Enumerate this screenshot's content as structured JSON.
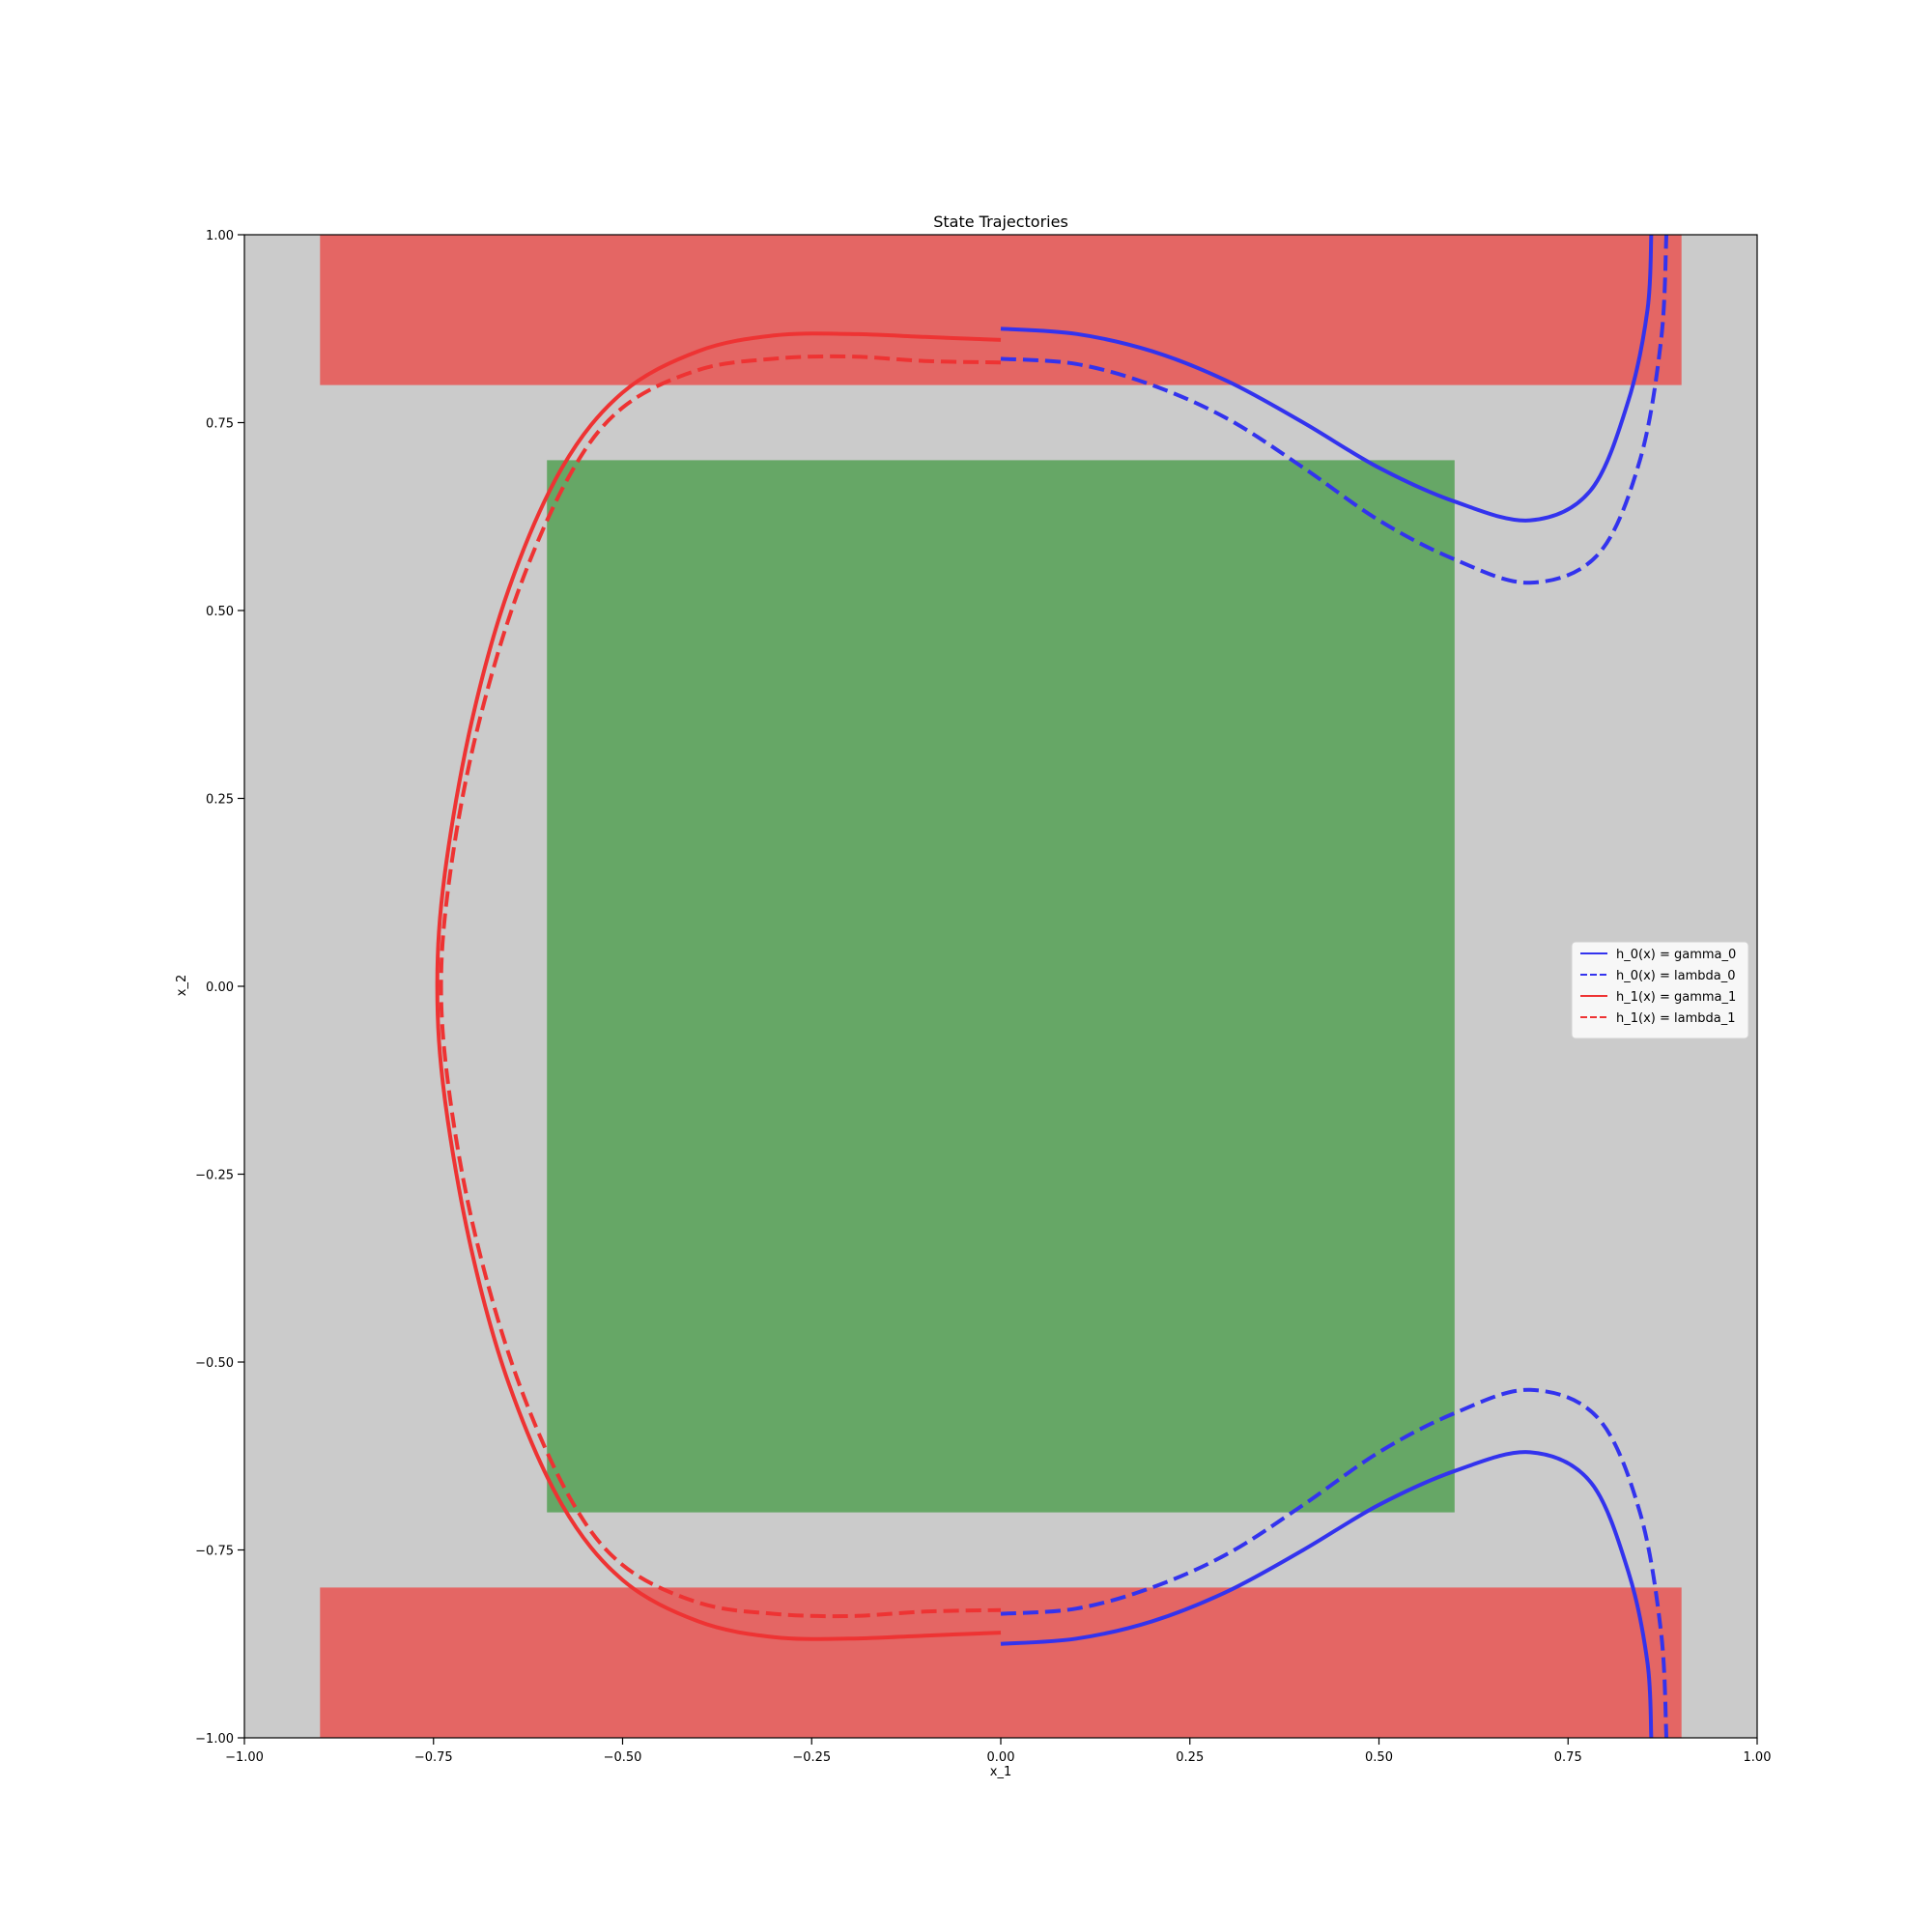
{
  "chart_data": {
    "type": "line",
    "title": "State Trajectories",
    "xlabel": "x_1",
    "ylabel": "x_2",
    "xlim": [
      -1.0,
      1.0
    ],
    "ylim": [
      -1.0,
      1.0
    ],
    "xticks": [
      "−1.00",
      "−0.75",
      "−0.50",
      "−0.25",
      "0.00",
      "0.25",
      "0.50",
      "0.75",
      "1.00"
    ],
    "yticks": [
      "1.00",
      "0.75",
      "0.50",
      "0.25",
      "0.00",
      "−0.25",
      "−0.50",
      "−0.75",
      "−1.00"
    ],
    "grid": false,
    "legend_position": "center-right",
    "background_color": "#cbcbcb",
    "regions": [
      {
        "kind": "unsafe",
        "x": [
          -0.9,
          0.9
        ],
        "y": [
          0.8,
          1.0
        ],
        "color": "#e46664"
      },
      {
        "kind": "unsafe",
        "x": [
          -0.9,
          0.9
        ],
        "y": [
          -1.0,
          -0.8
        ],
        "color": "#e46664"
      },
      {
        "kind": "initial",
        "x": [
          -0.6,
          0.6
        ],
        "y": [
          -0.7,
          0.7
        ],
        "color": "#66a766"
      }
    ],
    "series": [
      {
        "name": "h_0(x) = gamma_0",
        "color": "#3333ee",
        "dash": false,
        "points": [
          [
            0.0,
            0.875
          ],
          [
            0.1,
            0.868
          ],
          [
            0.2,
            0.845
          ],
          [
            0.3,
            0.805
          ],
          [
            0.4,
            0.75
          ],
          [
            0.5,
            0.69
          ],
          [
            0.6,
            0.645
          ],
          [
            0.7,
            0.62
          ],
          [
            0.78,
            0.66
          ],
          [
            0.83,
            0.78
          ],
          [
            0.855,
            0.9
          ],
          [
            0.86,
            1.0
          ]
        ]
      },
      {
        "name": "h_0(x) = lambda_0",
        "color": "#3333ee",
        "dash": true,
        "points": [
          [
            0.0,
            0.835
          ],
          [
            0.1,
            0.828
          ],
          [
            0.2,
            0.8
          ],
          [
            0.3,
            0.755
          ],
          [
            0.4,
            0.69
          ],
          [
            0.5,
            0.62
          ],
          [
            0.6,
            0.568
          ],
          [
            0.7,
            0.537
          ],
          [
            0.79,
            0.575
          ],
          [
            0.845,
            0.7
          ],
          [
            0.873,
            0.86
          ],
          [
            0.88,
            1.0
          ]
        ]
      },
      {
        "name": "h_1(x) = gamma_1",
        "color": "#ee3333",
        "dash": false,
        "points": [
          [
            0.0,
            0.86
          ],
          [
            -0.1,
            0.864
          ],
          [
            -0.2,
            0.868
          ],
          [
            -0.3,
            0.866
          ],
          [
            -0.4,
            0.845
          ],
          [
            -0.5,
            0.79
          ],
          [
            -0.58,
            0.69
          ],
          [
            -0.65,
            0.53
          ],
          [
            -0.7,
            0.35
          ],
          [
            -0.735,
            0.15
          ],
          [
            -0.745,
            0.0
          ],
          [
            -0.735,
            -0.15
          ],
          [
            -0.7,
            -0.35
          ],
          [
            -0.65,
            -0.53
          ],
          [
            -0.58,
            -0.69
          ],
          [
            -0.5,
            -0.79
          ],
          [
            -0.4,
            -0.845
          ],
          [
            -0.3,
            -0.866
          ],
          [
            -0.2,
            -0.868
          ],
          [
            -0.1,
            -0.864
          ],
          [
            0.0,
            -0.86
          ]
        ]
      },
      {
        "name": "h_1(x) = lambda_1",
        "color": "#ee3333",
        "dash": true,
        "points": [
          [
            0.0,
            0.83
          ],
          [
            -0.1,
            0.832
          ],
          [
            -0.2,
            0.838
          ],
          [
            -0.3,
            0.835
          ],
          [
            -0.4,
            0.82
          ],
          [
            -0.5,
            0.77
          ],
          [
            -0.57,
            0.68
          ],
          [
            -0.64,
            0.52
          ],
          [
            -0.695,
            0.33
          ],
          [
            -0.728,
            0.15
          ],
          [
            -0.74,
            0.0
          ],
          [
            -0.728,
            -0.15
          ],
          [
            -0.695,
            -0.33
          ],
          [
            -0.64,
            -0.52
          ],
          [
            -0.57,
            -0.68
          ],
          [
            -0.5,
            -0.77
          ],
          [
            -0.4,
            -0.82
          ],
          [
            -0.3,
            -0.835
          ],
          [
            -0.2,
            -0.838
          ],
          [
            -0.1,
            -0.832
          ],
          [
            0.0,
            -0.83
          ]
        ]
      },
      {
        "name": "",
        "color": "#3333ee",
        "dash": false,
        "points": [
          [
            0.0,
            -0.875
          ],
          [
            0.1,
            -0.868
          ],
          [
            0.2,
            -0.845
          ],
          [
            0.3,
            -0.805
          ],
          [
            0.4,
            -0.75
          ],
          [
            0.5,
            -0.69
          ],
          [
            0.6,
            -0.645
          ],
          [
            0.7,
            -0.62
          ],
          [
            0.78,
            -0.66
          ],
          [
            0.83,
            -0.78
          ],
          [
            0.855,
            -0.9
          ],
          [
            0.86,
            -1.0
          ]
        ]
      },
      {
        "name": "",
        "color": "#3333ee",
        "dash": true,
        "points": [
          [
            0.0,
            -0.835
          ],
          [
            0.1,
            -0.828
          ],
          [
            0.2,
            -0.8
          ],
          [
            0.3,
            -0.755
          ],
          [
            0.4,
            -0.69
          ],
          [
            0.5,
            -0.62
          ],
          [
            0.6,
            -0.568
          ],
          [
            0.7,
            -0.537
          ],
          [
            0.79,
            -0.575
          ],
          [
            0.845,
            -0.7
          ],
          [
            0.873,
            -0.86
          ],
          [
            0.88,
            -1.0
          ]
        ]
      }
    ],
    "legend": [
      {
        "label": "h_0(x) = gamma_0",
        "color": "#3333ee",
        "dash": false
      },
      {
        "label": "h_0(x) = lambda_0",
        "color": "#3333ee",
        "dash": true
      },
      {
        "label": "h_1(x) = gamma_1",
        "color": "#ee3333",
        "dash": false
      },
      {
        "label": "h_1(x) = lambda_1",
        "color": "#ee3333",
        "dash": true
      }
    ]
  }
}
